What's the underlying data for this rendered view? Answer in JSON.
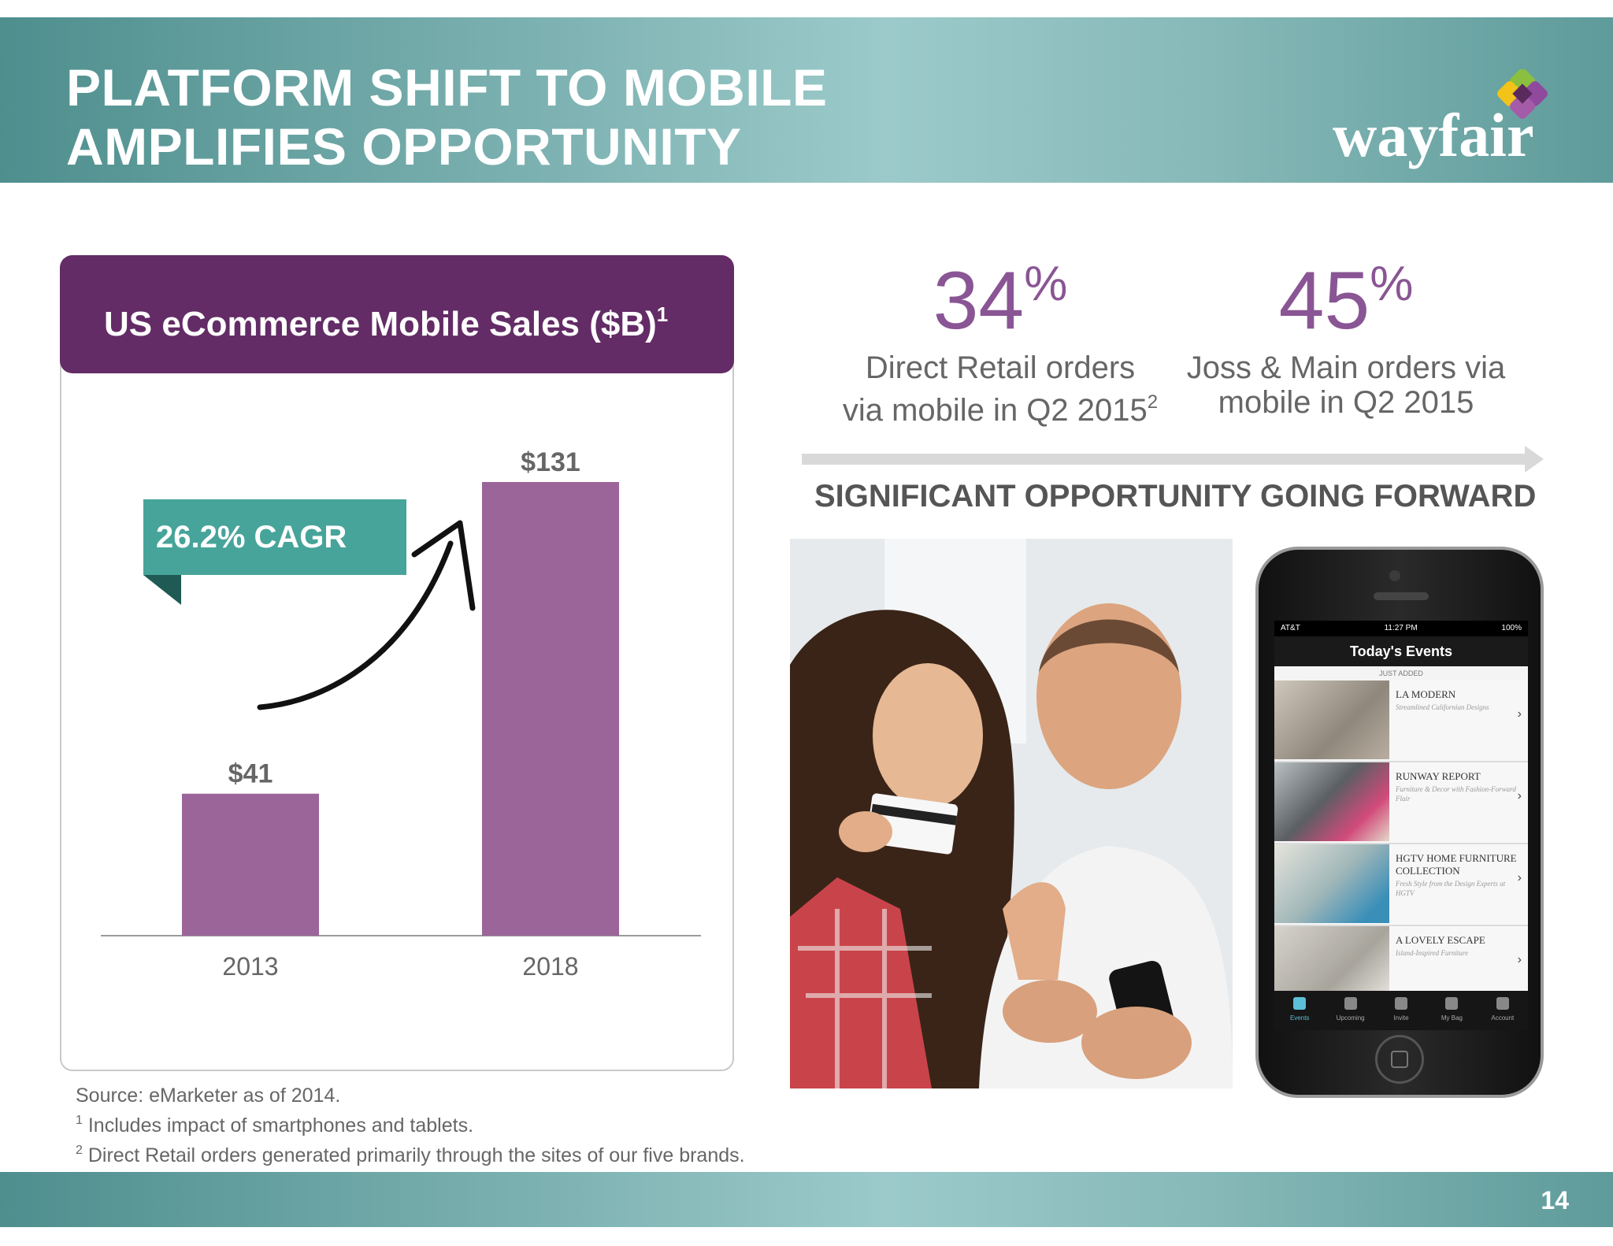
{
  "header": {
    "title_line1": "PLATFORM SHIFT TO MOBILE",
    "title_line2": "AMPLIFIES OPPORTUNITY",
    "logo_text": "wayfair",
    "logo_mark": "wayfair-petal-logo"
  },
  "colors": {
    "teal": "#7fb3b3",
    "purple_dark": "#632c66",
    "purple_bar": "#9b6599",
    "purple_stat": "#8a5594",
    "cagr_green": "#47a49a"
  },
  "chart_panel": {
    "title": "US eCommerce Mobile Sales ($B)",
    "title_superscript": "1",
    "cagr_label": "26.2% CAGR",
    "growth_arrow_icon": "hand-drawn-arrow"
  },
  "chart_data": {
    "type": "bar",
    "title": "US eCommerce Mobile Sales ($B)",
    "categories": [
      "2013",
      "2018"
    ],
    "values": [
      41,
      131
    ],
    "data_labels": [
      "$41",
      "$131"
    ],
    "xlabel": "",
    "ylabel": "",
    "ylim": [
      0,
      140
    ],
    "grid": false,
    "annotations": [
      "26.2% CAGR"
    ]
  },
  "stats": [
    {
      "value": "34",
      "unit": "%",
      "label_line1": "Direct Retail orders",
      "label_line2": "via mobile in Q2 2015",
      "superscript": "2"
    },
    {
      "value": "45",
      "unit": "%",
      "label_line1": "Joss & Main orders via",
      "label_line2": "mobile in Q2 2015",
      "superscript": ""
    }
  ],
  "opportunity_heading": "SIGNIFICANT OPPORTUNITY GOING FORWARD",
  "phone": {
    "carrier": "AT&T",
    "time": "11:27 PM",
    "battery": "100%",
    "app_title": "Today's Events",
    "section_label": "JUST ADDED",
    "events": [
      {
        "name": "LA MODERN",
        "subtitle": "Streamlined Californian Designs"
      },
      {
        "name": "RUNWAY REPORT",
        "subtitle": "Furniture & Decor with Fashion-Forward Flair"
      },
      {
        "name": "HGTV HOME FURNITURE COLLECTION",
        "subtitle": "Fresh Style from the Design Experts at HGTV"
      },
      {
        "name": "A LOVELY ESCAPE",
        "subtitle": "Island-Inspired Furniture"
      }
    ],
    "tabs": [
      "Events",
      "Upcoming",
      "Invite",
      "My Bag",
      "Account"
    ]
  },
  "footnotes": {
    "source": "Source: eMarketer as of 2014.",
    "note1_marker": "1",
    "note1": "Includes impact of smartphones and tablets.",
    "note2_marker": "2",
    "note2": "Direct Retail orders generated primarily through the sites of our five brands."
  },
  "page_number": "14"
}
